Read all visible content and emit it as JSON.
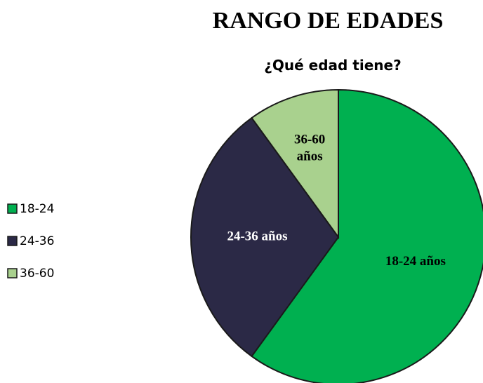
{
  "header": {
    "title": "RANGO DE EDADES"
  },
  "chart_data": {
    "type": "pie",
    "title": "¿Qué edad tiene?",
    "categories": [
      "18-24",
      "24-36",
      "36-60"
    ],
    "values": [
      60,
      30,
      10
    ],
    "colors": [
      "#00b050",
      "#2b2946",
      "#a9d18e"
    ],
    "labels": [
      [
        "18-24 años"
      ],
      [
        "24-36 años"
      ],
      [
        "36-60",
        "años"
      ]
    ],
    "label_colors": [
      "#000000",
      "#ffffff",
      "#000000"
    ],
    "legend": "left"
  }
}
